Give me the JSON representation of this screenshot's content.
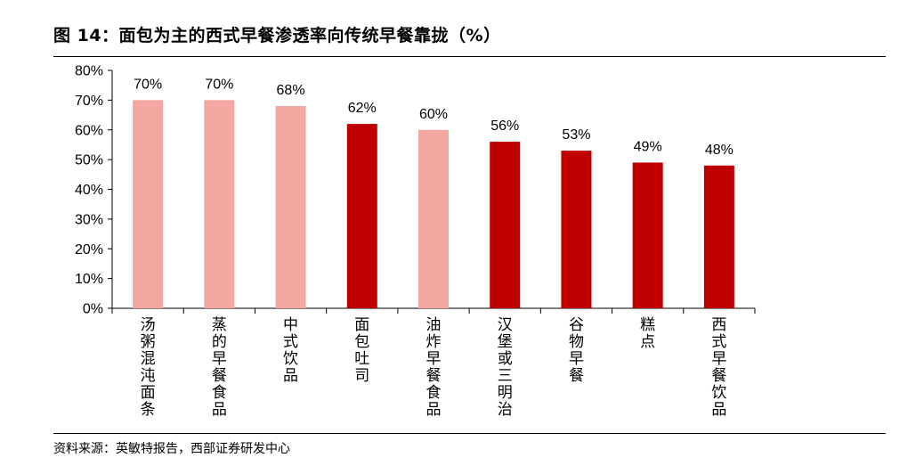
{
  "header": {
    "title": "图 14：面包为主的西式早餐渗透率向传统早餐靠拢（%）"
  },
  "footer": {
    "source": "资料来源：英敏特报告，西部证券研发中心"
  },
  "colors": {
    "highlight": "#c00000",
    "muted": "#f4a6a0"
  },
  "chart_data": {
    "type": "bar",
    "categories": [
      "汤粥混沌面条",
      "蒸的早餐食品",
      "中式饮品",
      "面包吐司",
      "油炸早餐食品",
      "汉堡或三明治",
      "谷物早餐",
      "糕点",
      "西式早餐饮品"
    ],
    "values": [
      70,
      70,
      68,
      62,
      60,
      56,
      53,
      49,
      48
    ],
    "data_labels": [
      "70%",
      "70%",
      "68%",
      "62%",
      "60%",
      "56%",
      "53%",
      "49%",
      "48%"
    ],
    "bar_colors": [
      "muted",
      "muted",
      "muted",
      "highlight",
      "muted",
      "highlight",
      "highlight",
      "highlight",
      "highlight"
    ],
    "y_ticks": [
      "0%",
      "10%",
      "20%",
      "30%",
      "40%",
      "50%",
      "60%",
      "70%",
      "80%"
    ],
    "ylim": [
      0,
      80
    ],
    "xlabel": "",
    "ylabel": "",
    "grid": false
  }
}
